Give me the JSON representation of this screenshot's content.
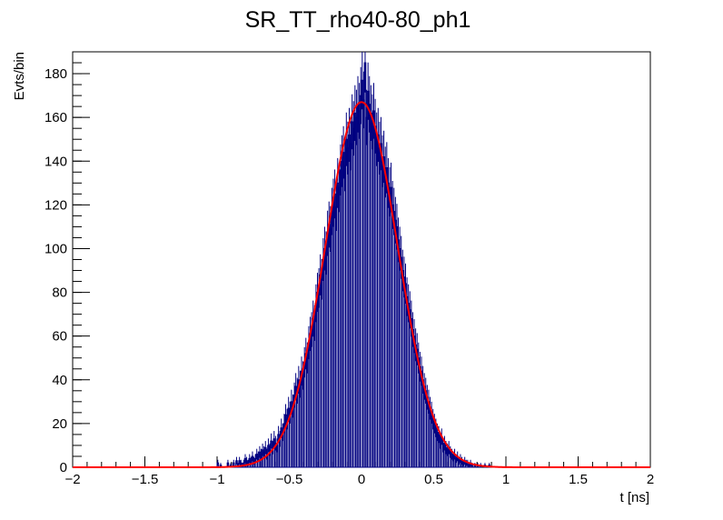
{
  "chart_data": {
    "type": "histogram",
    "title": "SR_TT_rho40-80_ph1",
    "xlabel": "t [ns]",
    "ylabel": "Evts/bin",
    "xlim": [
      -2,
      2
    ],
    "ylim": [
      0,
      190
    ],
    "xticks": [
      -2,
      -1.5,
      -1,
      -0.5,
      0,
      0.5,
      1,
      1.5,
      2
    ],
    "xtick_labels": [
      "−2",
      "−1.5",
      "−1",
      "−0.5",
      "0",
      "0.5",
      "1",
      "1.5",
      "2"
    ],
    "yticks": [
      0,
      20,
      40,
      60,
      80,
      100,
      120,
      140,
      160,
      180
    ],
    "ytick_labels": [
      "0",
      "20",
      "40",
      "60",
      "80",
      "100",
      "120",
      "140",
      "160",
      "180"
    ],
    "grid": false,
    "bin_width": 0.01,
    "histogram": {
      "name": "",
      "color": "#000080",
      "bins": [
        [
          -1.0,
          2
        ],
        [
          -0.98,
          1
        ],
        [
          -0.93,
          2
        ],
        [
          -0.91,
          1
        ],
        [
          -0.89,
          2
        ],
        [
          -0.87,
          3
        ],
        [
          -0.86,
          1
        ],
        [
          -0.85,
          3
        ],
        [
          -0.84,
          2
        ],
        [
          -0.83,
          1
        ],
        [
          -0.82,
          2
        ],
        [
          -0.81,
          4
        ],
        [
          -0.8,
          3
        ],
        [
          -0.79,
          2
        ],
        [
          -0.78,
          4
        ],
        [
          -0.77,
          3
        ],
        [
          -0.76,
          5
        ],
        [
          -0.75,
          3
        ],
        [
          -0.74,
          4
        ],
        [
          -0.73,
          6
        ],
        [
          -0.72,
          5
        ],
        [
          -0.71,
          7
        ],
        [
          -0.7,
          6
        ],
        [
          -0.69,
          8
        ],
        [
          -0.68,
          7
        ],
        [
          -0.67,
          9
        ],
        [
          -0.66,
          6
        ],
        [
          -0.65,
          10
        ],
        [
          -0.64,
          8
        ],
        [
          -0.63,
          12
        ],
        [
          -0.62,
          9
        ],
        [
          -0.61,
          13
        ],
        [
          -0.6,
          11
        ],
        [
          -0.59,
          10
        ],
        [
          -0.58,
          15
        ],
        [
          -0.57,
          13
        ],
        [
          -0.56,
          18
        ],
        [
          -0.55,
          16
        ],
        [
          -0.54,
          20
        ],
        [
          -0.53,
          24
        ],
        [
          -0.52,
          22
        ],
        [
          -0.51,
          27
        ],
        [
          -0.5,
          25
        ],
        [
          -0.49,
          30
        ],
        [
          -0.48,
          28
        ],
        [
          -0.47,
          33
        ],
        [
          -0.46,
          37
        ],
        [
          -0.45,
          35
        ],
        [
          -0.44,
          40
        ],
        [
          -0.43,
          38
        ],
        [
          -0.42,
          44
        ],
        [
          -0.41,
          42
        ],
        [
          -0.4,
          48
        ],
        [
          -0.39,
          52
        ],
        [
          -0.38,
          50
        ],
        [
          -0.37,
          57
        ],
        [
          -0.36,
          61
        ],
        [
          -0.35,
          63
        ],
        [
          -0.34,
          68
        ],
        [
          -0.33,
          66
        ],
        [
          -0.32,
          75
        ],
        [
          -0.31,
          80
        ],
        [
          -0.3,
          82
        ],
        [
          -0.29,
          88
        ],
        [
          -0.28,
          86
        ],
        [
          -0.27,
          95
        ],
        [
          -0.26,
          100
        ],
        [
          -0.25,
          98
        ],
        [
          -0.24,
          107
        ],
        [
          -0.23,
          111
        ],
        [
          -0.22,
          109
        ],
        [
          -0.21,
          117
        ],
        [
          -0.2,
          121
        ],
        [
          -0.19,
          125
        ],
        [
          -0.18,
          119
        ],
        [
          -0.17,
          130
        ],
        [
          -0.16,
          128
        ],
        [
          -0.15,
          136
        ],
        [
          -0.14,
          140
        ],
        [
          -0.13,
          144
        ],
        [
          -0.12,
          138
        ],
        [
          -0.11,
          150
        ],
        [
          -0.1,
          146
        ],
        [
          -0.09,
          152
        ],
        [
          -0.08,
          148
        ],
        [
          -0.07,
          158
        ],
        [
          -0.06,
          155
        ],
        [
          -0.05,
          162
        ],
        [
          -0.04,
          160
        ],
        [
          -0.03,
          166
        ],
        [
          -0.02,
          163
        ],
        [
          -0.01,
          170
        ],
        [
          0.0,
          177
        ],
        [
          0.01,
          168
        ],
        [
          0.02,
          185
        ],
        [
          0.03,
          160
        ],
        [
          0.04,
          172
        ],
        [
          0.05,
          166
        ],
        [
          0.06,
          162
        ],
        [
          0.07,
          158
        ],
        [
          0.08,
          163
        ],
        [
          0.09,
          156
        ],
        [
          0.1,
          150
        ],
        [
          0.11,
          152
        ],
        [
          0.12,
          146
        ],
        [
          0.13,
          148
        ],
        [
          0.14,
          140
        ],
        [
          0.15,
          142
        ],
        [
          0.16,
          135
        ],
        [
          0.17,
          137
        ],
        [
          0.18,
          130
        ],
        [
          0.19,
          126
        ],
        [
          0.2,
          128
        ],
        [
          0.21,
          120
        ],
        [
          0.22,
          117
        ],
        [
          0.23,
          113
        ],
        [
          0.24,
          110
        ],
        [
          0.25,
          104
        ],
        [
          0.26,
          100
        ],
        [
          0.27,
          96
        ],
        [
          0.28,
          90
        ],
        [
          0.29,
          87
        ],
        [
          0.3,
          84
        ],
        [
          0.31,
          78
        ],
        [
          0.32,
          75
        ],
        [
          0.33,
          72
        ],
        [
          0.34,
          68
        ],
        [
          0.35,
          63
        ],
        [
          0.36,
          60
        ],
        [
          0.37,
          56
        ],
        [
          0.38,
          54
        ],
        [
          0.39,
          50
        ],
        [
          0.4,
          46
        ],
        [
          0.41,
          44
        ],
        [
          0.42,
          40
        ],
        [
          0.43,
          37
        ],
        [
          0.44,
          35
        ],
        [
          0.45,
          32
        ],
        [
          0.46,
          30
        ],
        [
          0.47,
          27
        ],
        [
          0.48,
          25
        ],
        [
          0.49,
          22
        ],
        [
          0.5,
          20
        ],
        [
          0.51,
          18
        ],
        [
          0.52,
          16
        ],
        [
          0.53,
          15
        ],
        [
          0.54,
          12
        ],
        [
          0.55,
          14
        ],
        [
          0.56,
          10
        ],
        [
          0.57,
          11
        ],
        [
          0.58,
          9
        ],
        [
          0.59,
          8
        ],
        [
          0.6,
          9
        ],
        [
          0.61,
          7
        ],
        [
          0.62,
          6
        ],
        [
          0.63,
          5
        ],
        [
          0.64,
          6
        ],
        [
          0.65,
          4
        ],
        [
          0.66,
          5
        ],
        [
          0.67,
          3
        ],
        [
          0.68,
          4
        ],
        [
          0.69,
          3
        ],
        [
          0.7,
          2
        ],
        [
          0.71,
          3
        ],
        [
          0.72,
          2
        ],
        [
          0.73,
          2
        ],
        [
          0.74,
          1
        ],
        [
          0.75,
          2
        ],
        [
          0.76,
          1
        ],
        [
          0.78,
          1
        ],
        [
          0.8,
          1
        ],
        [
          0.82,
          1
        ],
        [
          0.85,
          1
        ],
        [
          0.88,
          1
        ]
      ]
    },
    "fit": {
      "type": "gaussian",
      "name": "",
      "color": "#ff0000",
      "amplitude": 167,
      "mean": 0.0,
      "sigma": 0.25,
      "x_range": [
        -2,
        2
      ]
    }
  }
}
